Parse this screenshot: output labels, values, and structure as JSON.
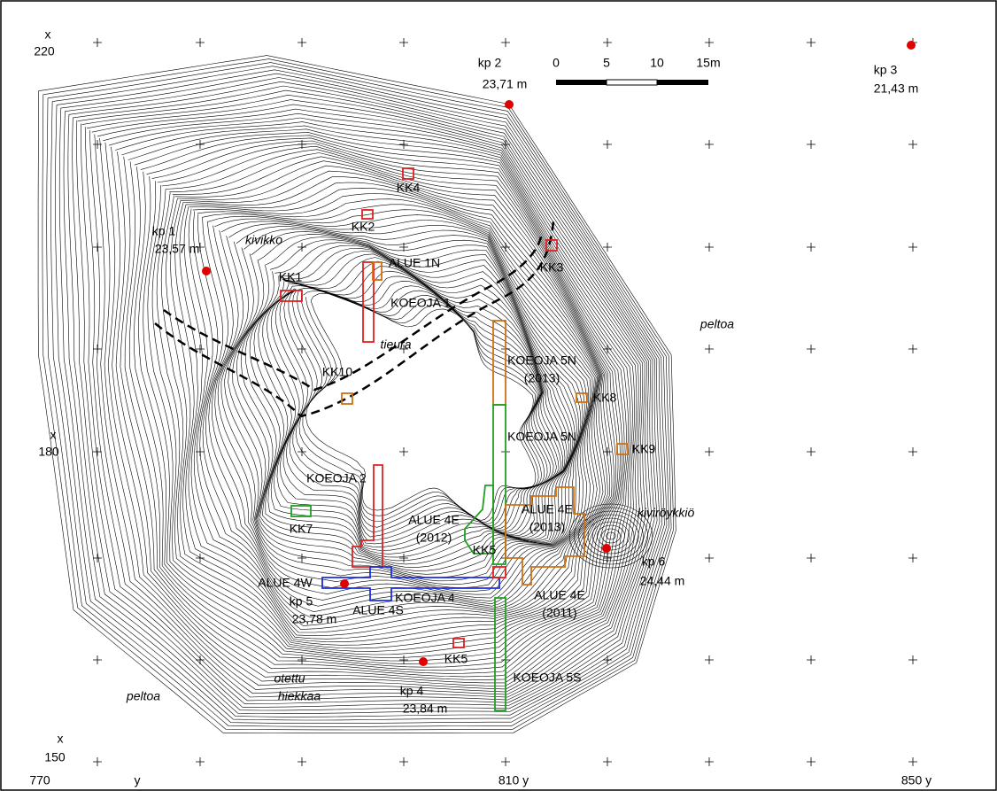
{
  "coordinates": {
    "x_axis_label": "x",
    "x_ticks": [
      "220",
      "180",
      "150"
    ],
    "y_axis_label": "y",
    "y_ticks": [
      "770",
      "810 y",
      "850 y"
    ]
  },
  "scale_bar": {
    "ticks": [
      "0",
      "5",
      "10",
      "15m"
    ]
  },
  "benchmarks": [
    {
      "name": "kp 1",
      "elevation": "23,57 m"
    },
    {
      "name": "kp 2",
      "elevation": "23,71 m"
    },
    {
      "name": "kp 3",
      "elevation": "21,43 m"
    },
    {
      "name": "kp 4",
      "elevation": "23,84 m"
    },
    {
      "name": "kp 5",
      "elevation": "23,78 m"
    },
    {
      "name": "kp 6",
      "elevation": "24,44 m"
    }
  ],
  "place_names": [
    "kivikko",
    "peltoa",
    "tieura",
    "kiviröykkiö",
    "otettu",
    "hiekkaa",
    "peltoa"
  ],
  "test_pits": [
    "KK1",
    "KK2",
    "KK3",
    "KK4",
    "KK5",
    "KK5",
    "KK7",
    "KK8",
    "KK9",
    "KK10"
  ],
  "excavation_areas": [
    {
      "lines": [
        "ALUE 1N"
      ]
    },
    {
      "lines": [
        "KOEOJA 1"
      ]
    },
    {
      "lines": [
        "KOEOJA 5N",
        "(2013)"
      ]
    },
    {
      "lines": [
        "KOEOJA 5N"
      ]
    },
    {
      "lines": [
        "KOEOJA 2"
      ]
    },
    {
      "lines": [
        "ALUE 4E",
        "(2012)"
      ]
    },
    {
      "lines": [
        "ALUE 4E",
        "(2013)"
      ]
    },
    {
      "lines": [
        "ALUE 4W"
      ]
    },
    {
      "lines": [
        "KOEOJA 4"
      ]
    },
    {
      "lines": [
        "ALUE 4S"
      ]
    },
    {
      "lines": [
        "ALUE 4E",
        "(2011)"
      ]
    },
    {
      "lines": [
        "KOEOJA 5S"
      ]
    }
  ]
}
